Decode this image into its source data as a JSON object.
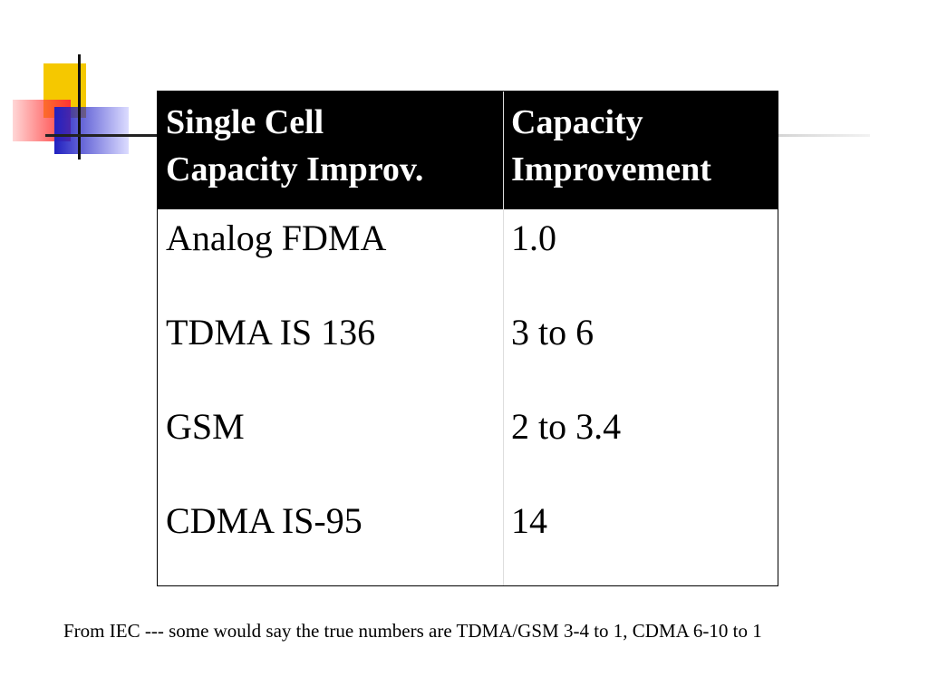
{
  "table": {
    "header": [
      [
        "Single Cell",
        "Capacity Improv."
      ],
      [
        "Capacity",
        "Improvement"
      ]
    ],
    "rows": [
      [
        "Analog FDMA",
        "1.0"
      ],
      [
        "TDMA IS 136",
        "3 to 6"
      ],
      [
        "GSM",
        "2 to 3.4"
      ],
      [
        "CDMA IS-95",
        "14"
      ]
    ]
  },
  "footnote": "From IEC --- some would say the true numbers are TDMA/GSM 3-4 to 1,  CDMA 6-10 to 1"
}
